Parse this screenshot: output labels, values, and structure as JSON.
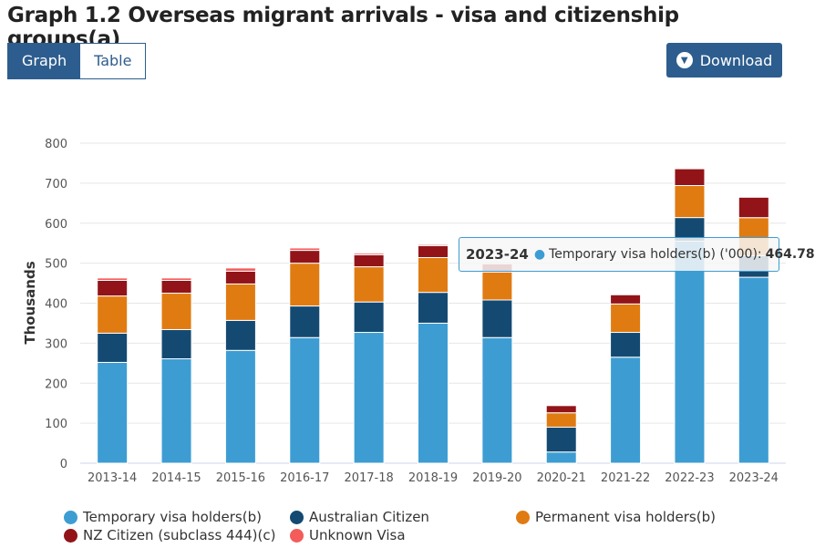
{
  "title": "Graph 1.2 Overseas migrant arrivals - visa and citizenship groups(a)",
  "tabs": [
    {
      "label": "Graph",
      "active": true
    },
    {
      "label": "Table",
      "active": false
    }
  ],
  "download": {
    "label": "Download",
    "icon": "chevron-down-icon"
  },
  "tooltip": {
    "category": "2023-24",
    "series": "Temporary visa holders(b) ('000):",
    "value": "464.78"
  },
  "chart_data": {
    "type": "bar",
    "stacked": true,
    "title": "",
    "xlabel": "",
    "ylabel": "Thousands",
    "ylim": [
      0,
      800
    ],
    "yticks": [
      "0",
      "100",
      "200",
      "300",
      "400",
      "500",
      "600",
      "700",
      "800"
    ],
    "grid": true,
    "legend_position": "bottom",
    "categories": [
      "2013-14",
      "2014-15",
      "2015-16",
      "2016-17",
      "2017-18",
      "2018-19",
      "2019-20",
      "2020-21",
      "2021-22",
      "2022-23",
      "2023-24"
    ],
    "series": [
      {
        "name": "Temporary visa holders(b)",
        "color": "#3d9dd3",
        "values": [
          252,
          261,
          282,
          314,
          327,
          350,
          314,
          28,
          265,
          555,
          464.78
        ]
      },
      {
        "name": "Australian Citizen",
        "color": "#144a72",
        "values": [
          73,
          73,
          75,
          79,
          76,
          77,
          94,
          62,
          62,
          59,
          54
        ]
      },
      {
        "name": "Permanent visa holders(b)",
        "color": "#e07b12",
        "values": [
          93,
          91,
          91,
          107,
          88,
          87,
          70,
          36,
          71,
          80,
          95
        ]
      },
      {
        "name": "NZ Citizen (subclass 444)(c)",
        "color": "#921419",
        "values": [
          39,
          32,
          32,
          32,
          30,
          30,
          20,
          18,
          23,
          42,
          51
        ]
      },
      {
        "name": "Unknown Visa",
        "color": "#f45b5b",
        "values": [
          6,
          6,
          8,
          6,
          4,
          3,
          3,
          0,
          0,
          0,
          0
        ]
      }
    ]
  }
}
